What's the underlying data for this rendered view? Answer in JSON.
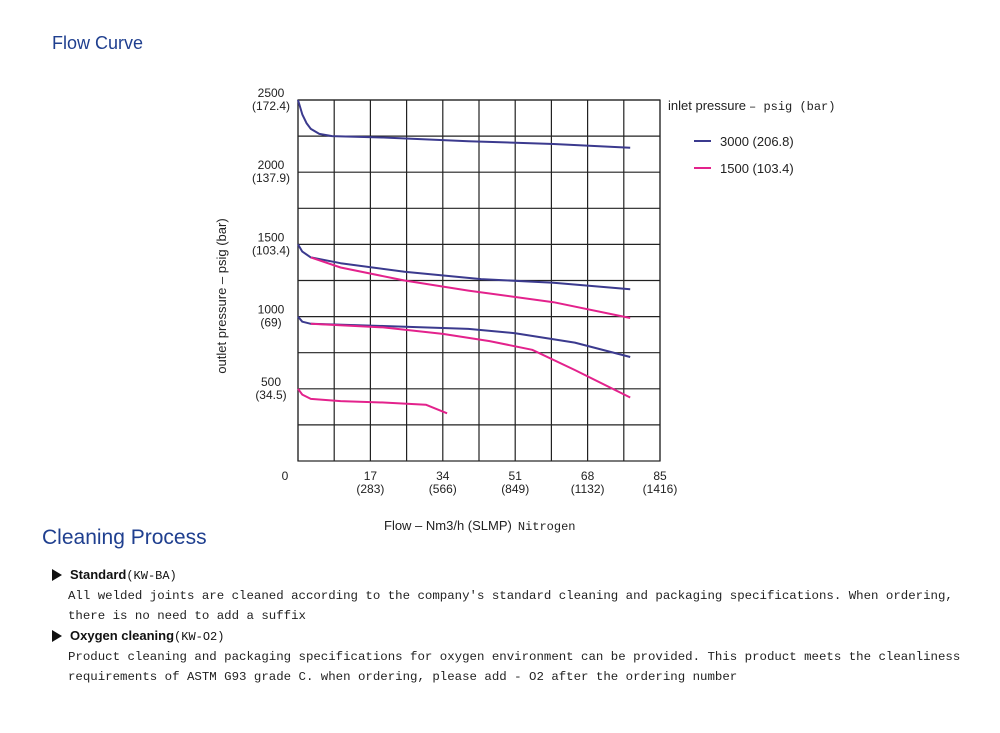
{
  "header": {
    "title": "Flow Curve"
  },
  "chart_data": {
    "type": "line",
    "ylabel": "outlet pressure – psig (bar)",
    "xlabel": "Flow – Nm3/h (SLMP)",
    "xlabel_suffix": "Nitrogen",
    "legend_title": "inlet pressure",
    "legend_title_unit": "– psig (bar)",
    "xlim": [
      0,
      85
    ],
    "ylim": [
      0,
      2500
    ],
    "xticks": [
      0,
      {
        "value": 17,
        "label": "17\n(283)"
      },
      {
        "value": 34,
        "label": "34\n(566)"
      },
      {
        "value": 51,
        "label": "51\n(849)"
      },
      {
        "value": 68,
        "label": "68\n(1132)"
      },
      {
        "value": 85,
        "label": "85\n(1416)"
      }
    ],
    "yticks": [
      {
        "value": 500,
        "label": "500\n(34.5)"
      },
      {
        "value": 1000,
        "label": "1000\n(69)"
      },
      {
        "value": 1500,
        "label": "1500\n(103.4)"
      },
      {
        "value": 2000,
        "label": "2000\n(137.9)"
      },
      {
        "value": 2500,
        "label": "2500\n(172.4)"
      }
    ],
    "xminor": [
      8.5,
      25.5,
      42.5,
      59.5,
      76.5
    ],
    "yminor": [
      250,
      750,
      1250,
      1750,
      2250
    ],
    "grid": true,
    "series": [
      {
        "name": "3000 (206.8)",
        "color": "#3b3a8e",
        "curves": [
          {
            "x": [
              0,
              1,
              2,
              3,
              5,
              8,
              20,
              40,
              60,
              78
            ],
            "values": [
              2500,
              2400,
              2340,
              2300,
              2265,
              2250,
              2240,
              2215,
              2195,
              2170
            ]
          },
          {
            "x": [
              0,
              1,
              3,
              10,
              25,
              43,
              60,
              78
            ],
            "values": [
              1500,
              1450,
              1410,
              1370,
              1310,
              1260,
              1235,
              1190
            ]
          },
          {
            "x": [
              0,
              1,
              3,
              20,
              40,
              51,
              65,
              78
            ],
            "values": [
              1000,
              965,
              950,
              935,
              915,
              885,
              820,
              720
            ]
          }
        ]
      },
      {
        "name": "1500 (103.4)",
        "color": "#e3228c",
        "curves": [
          {
            "x": [
              3,
              10,
              25,
              40,
              60,
              78
            ],
            "values": [
              1410,
              1340,
              1250,
              1180,
              1100,
              990
            ]
          },
          {
            "x": [
              3,
              20,
              34,
              45,
              55,
              65,
              78
            ],
            "values": [
              950,
              925,
              880,
              830,
              770,
              630,
              440
            ]
          },
          {
            "x": [
              0,
              1,
              3,
              10,
              20,
              30,
              35
            ],
            "values": [
              500,
              460,
              430,
              415,
              405,
              390,
              330
            ]
          }
        ]
      }
    ]
  },
  "cleaning": {
    "title": "Cleaning Process",
    "items": [
      {
        "name": "Standard",
        "code": "(KW-BA)",
        "text": "All welded joints are cleaned according to the company's standard cleaning and packaging specifications. When ordering, there is no need to add a suffix"
      },
      {
        "name": "Oxygen cleaning",
        "code": "(KW-O2)",
        "text": "Product cleaning and packaging specifications for oxygen environment can be provided. This product meets the cleanliness requirements of ASTM G93 grade C. when ordering, please add - O2 after the ordering number"
      }
    ]
  }
}
